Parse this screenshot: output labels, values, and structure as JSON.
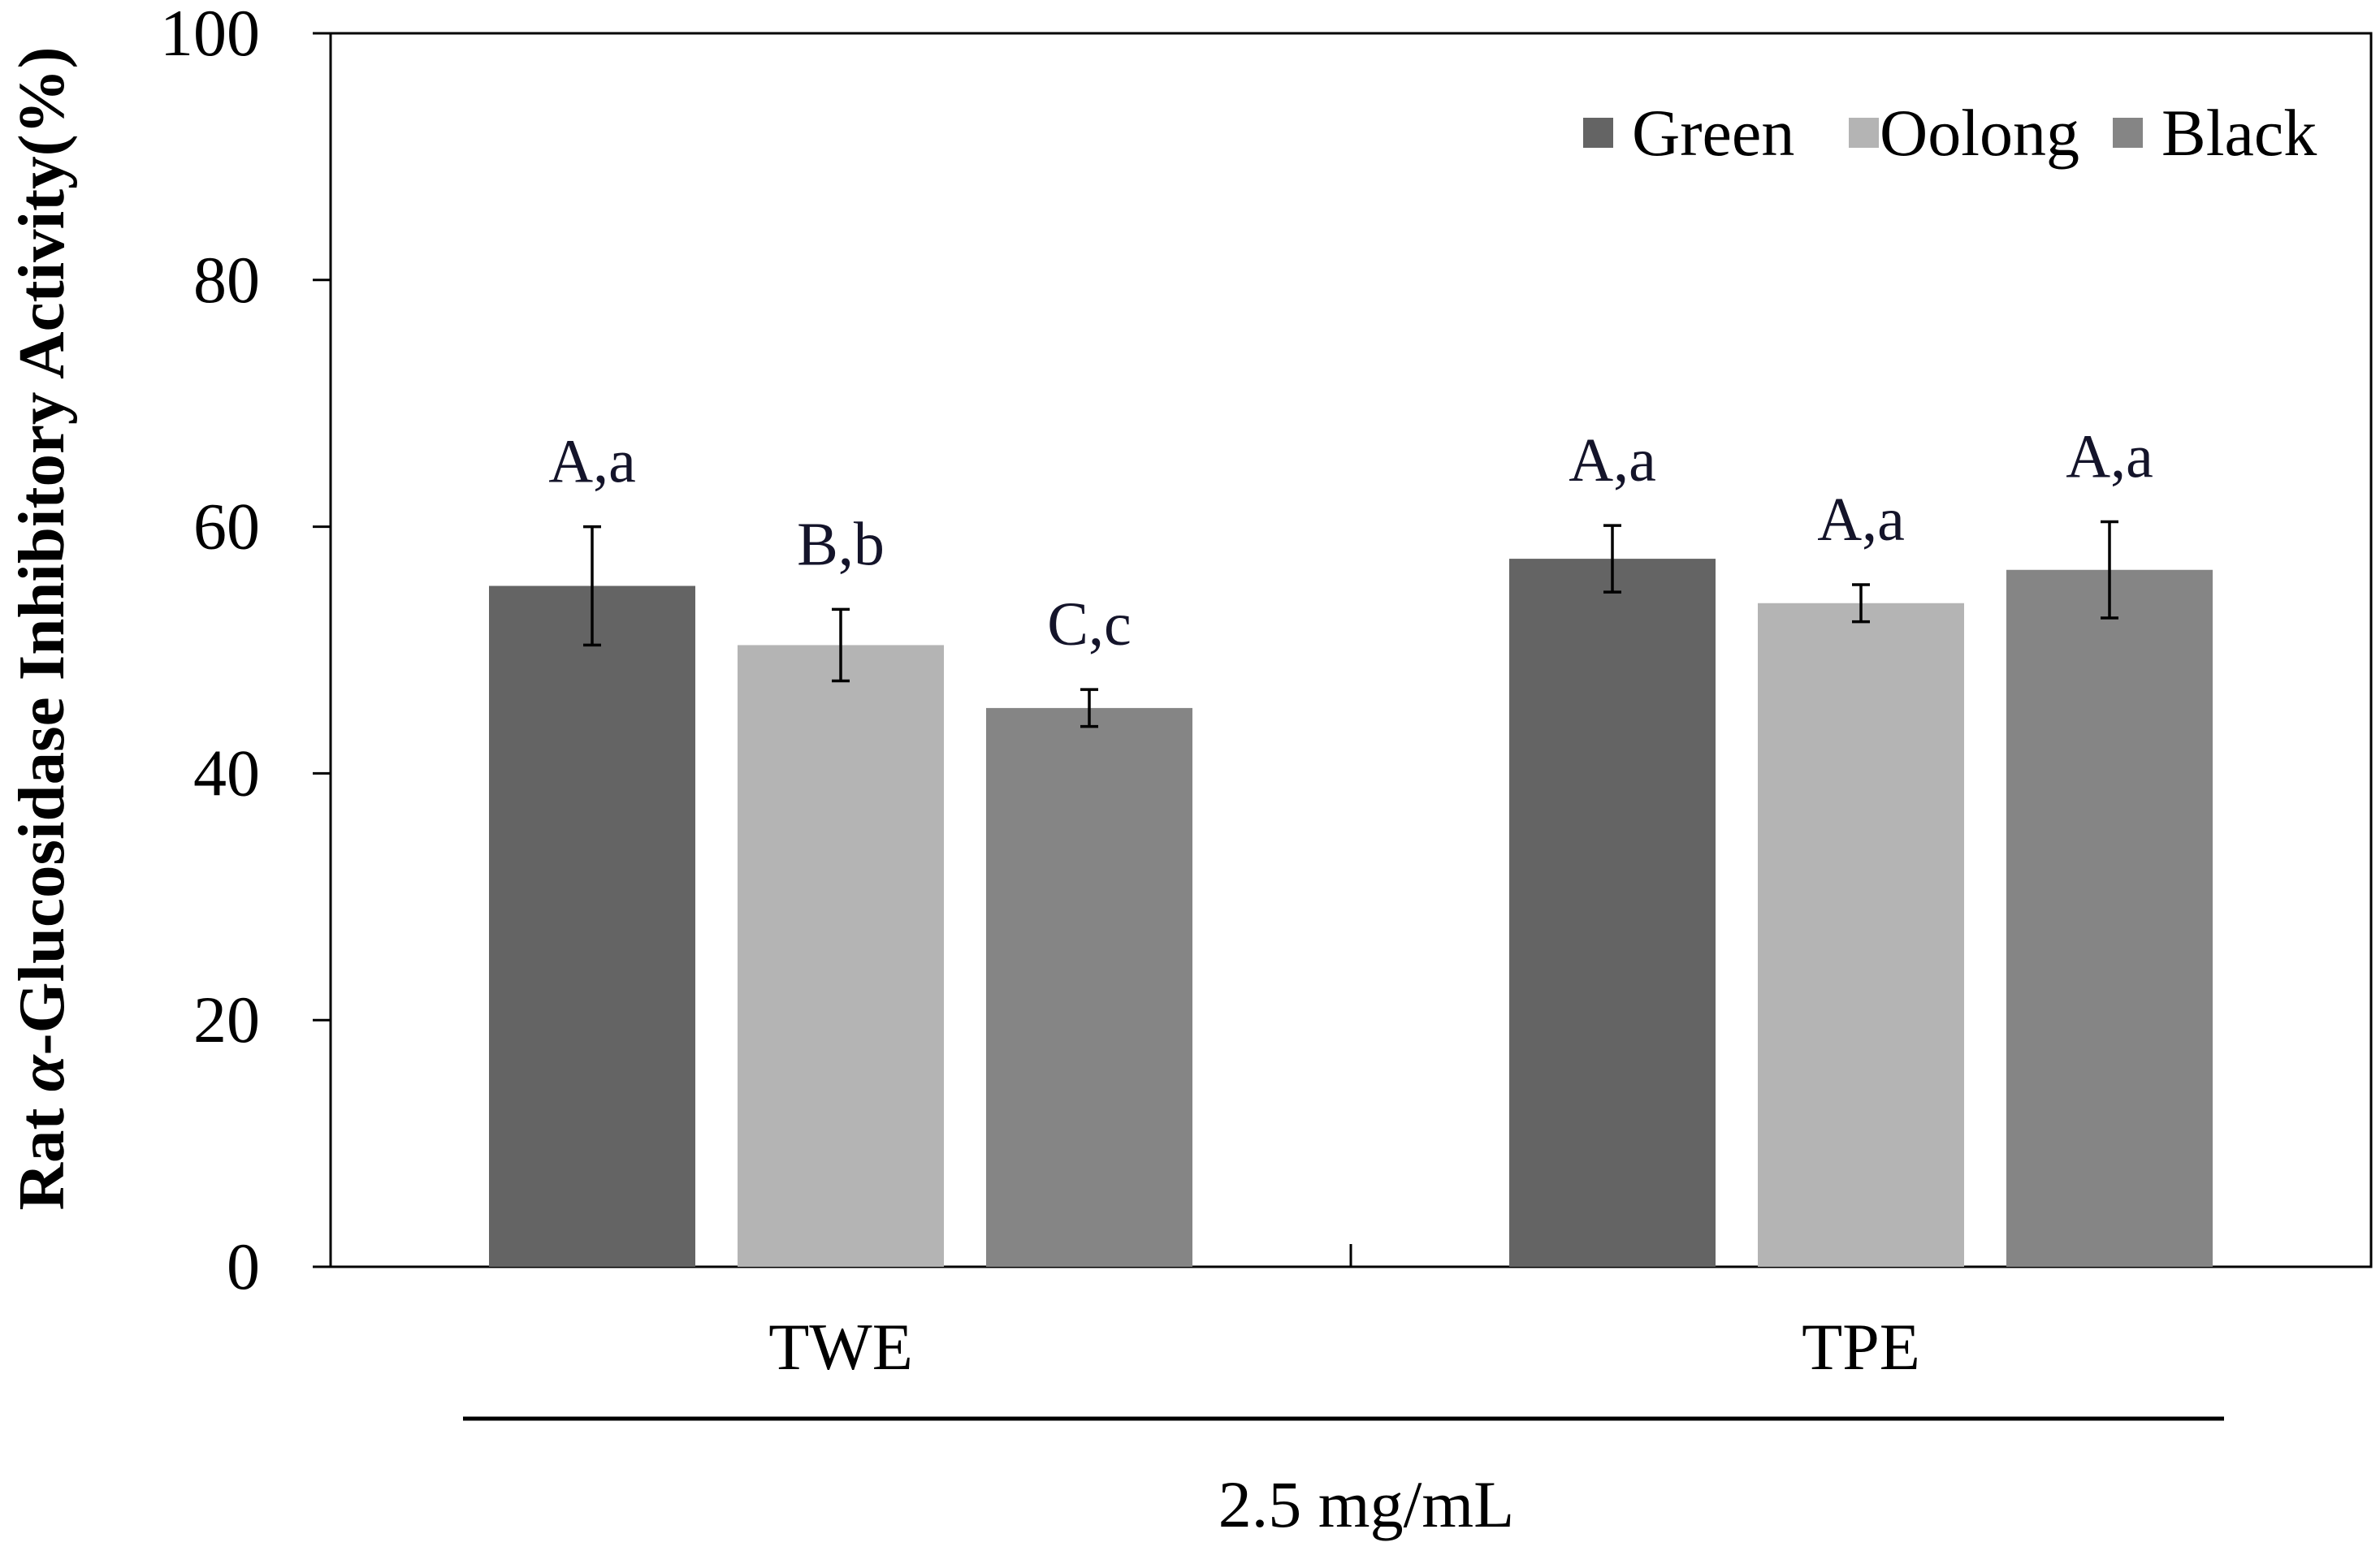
{
  "chart_data": {
    "type": "bar",
    "title": "",
    "categories": [
      "TWE",
      "TPE"
    ],
    "series": [
      {
        "name": "Green",
        "color": "#646464",
        "values": [
          55.2,
          57.4
        ],
        "errors": [
          4.8,
          2.7
        ],
        "labels": [
          "A,a",
          "A,a"
        ]
      },
      {
        "name": "Oolong",
        "color": "#b4b4b4",
        "values": [
          50.4,
          53.8
        ],
        "errors": [
          2.9,
          1.5
        ],
        "labels": [
          "B,b",
          "A,a"
        ]
      },
      {
        "name": "Black",
        "color": "#858585",
        "values": [
          45.3,
          56.5
        ],
        "errors": [
          1.5,
          3.9
        ],
        "labels": [
          "C,c",
          "A,a"
        ]
      }
    ],
    "xlabel": "2.5 mg/mL",
    "ylabel": "Rat α-Glucosidase Inhibitory Activity(%)",
    "ylim": [
      0,
      100
    ],
    "yticks": [
      0,
      20,
      40,
      60,
      80,
      100
    ],
    "legend": "top-right",
    "grid": false
  }
}
